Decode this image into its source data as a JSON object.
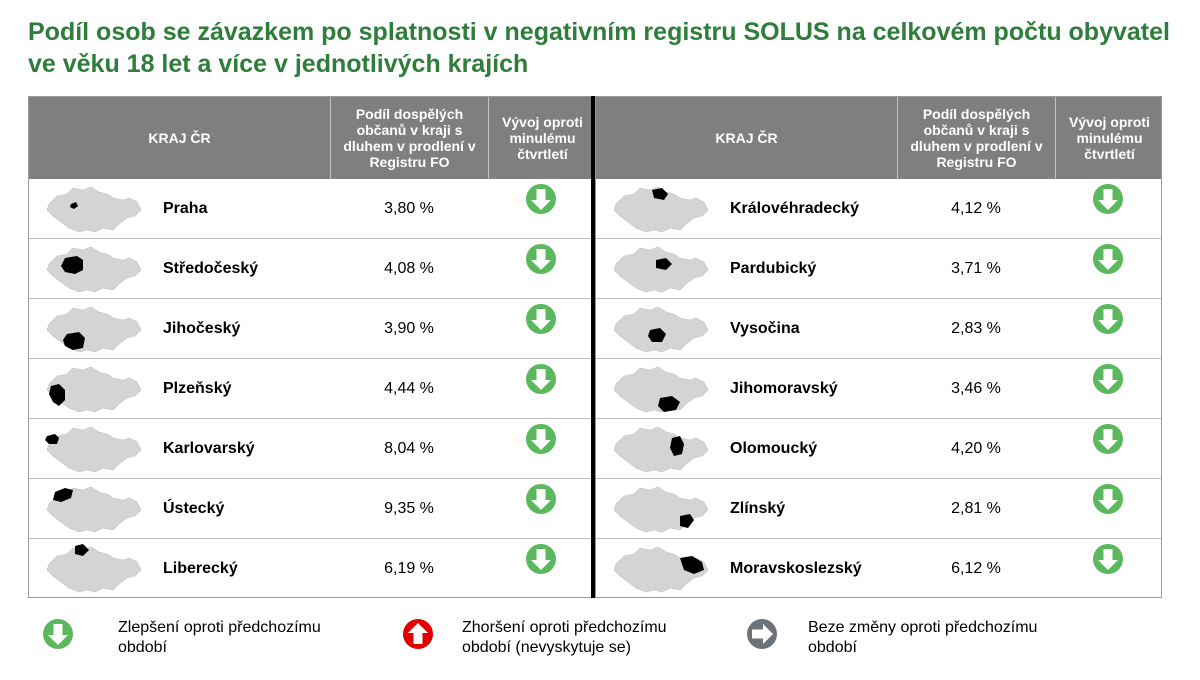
{
  "title": "Podíl osob se závazkem po splatnosti v negativním registru SOLUS na celkovém počtu obyvatel ve věku 18 let a více v jednotlivých krajích",
  "headers": {
    "kraj": "KRAJ ČR",
    "podil": "Podíl dospělých občanů v kraji s dluhem v prodlení v Registru FO",
    "vyvoj": "Vývoj oproti minulému čtvrtletí"
  },
  "colors": {
    "title": "#2e7d3a",
    "improve": "#5cb85c",
    "worse": "#e00000",
    "nochange": "#6d7278",
    "header": "#7f7f7f"
  },
  "left_rows": [
    {
      "name": "Praha",
      "value": "3,80 %",
      "trend": "down-arrow-icon"
    },
    {
      "name": "Středočeský",
      "value": "4,08 %",
      "trend": "down-arrow-icon"
    },
    {
      "name": "Jihočeský",
      "value": "3,90 %",
      "trend": "down-arrow-icon"
    },
    {
      "name": "Plzeňský",
      "value": "4,44 %",
      "trend": "down-arrow-icon"
    },
    {
      "name": "Karlovarský",
      "value": "8,04 %",
      "trend": "down-arrow-icon"
    },
    {
      "name": "Ústecký",
      "value": "9,35 %",
      "trend": "down-arrow-icon"
    },
    {
      "name": "Liberecký",
      "value": "6,19 %",
      "trend": "down-arrow-icon"
    }
  ],
  "right_rows": [
    {
      "name": "Královéhradecký",
      "value": "4,12 %",
      "trend": "down-arrow-icon"
    },
    {
      "name": "Pardubický",
      "value": "3,71 %",
      "trend": "down-arrow-icon"
    },
    {
      "name": "Vysočina",
      "value": "2,83 %",
      "trend": "down-arrow-icon"
    },
    {
      "name": "Jihomoravský",
      "value": "3,46 %",
      "trend": "down-arrow-icon"
    },
    {
      "name": "Olomoucký",
      "value": "4,20 %",
      "trend": "down-arrow-icon"
    },
    {
      "name": "Zlínský",
      "value": "2,81 %",
      "trend": "down-arrow-icon"
    },
    {
      "name": "Moravskoslezský",
      "value": "6,12 %",
      "trend": "down-arrow-icon"
    }
  ],
  "legend": {
    "improve": "Zlepšení oproti předchozímu období",
    "worse": "Zhoršení oproti předchozímu období (nevyskytuje se)",
    "nochange": "Beze změny oproti předchozímu období"
  }
}
